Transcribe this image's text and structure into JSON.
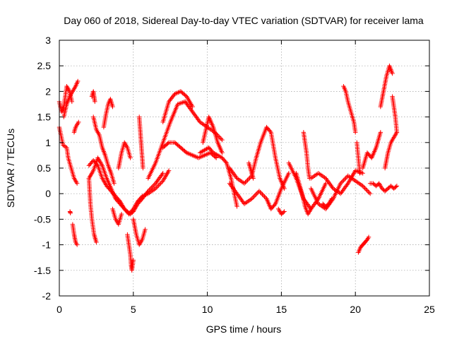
{
  "chart_data": {
    "type": "scatter",
    "title": "Day 060 of 2018, Sidereal Day-to-day VTEC variation (SDTVAR) for receiver lama",
    "xlabel": "GPS time / hours",
    "ylabel": "SDTVAR / TECUs",
    "xlim": [
      0,
      25
    ],
    "ylim": [
      -2,
      3
    ],
    "xticks": [
      0,
      5,
      10,
      15,
      20,
      25
    ],
    "yticks": [
      -2,
      -1.5,
      -1,
      -0.5,
      0,
      0.5,
      1,
      1.5,
      2,
      2.5,
      3
    ],
    "grid": true,
    "marker": "+",
    "color": "#ff0000",
    "series": [
      {
        "name": "s1",
        "x": [
          0.0,
          0.25,
          0.5,
          0.6,
          0.8,
          1.0,
          1.2
        ],
        "y": [
          1.3,
          0.95,
          0.9,
          0.7,
          0.5,
          0.3,
          0.2
        ]
      },
      {
        "name": "s2",
        "x": [
          0.0,
          0.15,
          0.3,
          0.5,
          0.7,
          0.85
        ],
        "y": [
          1.8,
          1.6,
          1.7,
          2.1,
          2.0,
          1.8
        ]
      },
      {
        "name": "s3",
        "x": [
          0.3,
          0.5,
          0.7,
          0.9,
          1.1,
          1.25
        ],
        "y": [
          1.5,
          1.75,
          1.9,
          2.0,
          2.1,
          2.2
        ]
      },
      {
        "name": "s4",
        "x": [
          0.9,
          1.0,
          1.1,
          1.2
        ],
        "y": [
          -0.6,
          -0.8,
          -0.95,
          -1.0
        ]
      },
      {
        "name": "s5",
        "x": [
          1.0,
          1.1,
          1.2,
          1.3
        ],
        "y": [
          1.2,
          1.3,
          1.35,
          1.4
        ]
      },
      {
        "name": "s6",
        "x": [
          0.72,
          0.75
        ],
        "y": [
          -0.35,
          -0.38
        ]
      },
      {
        "name": "s7",
        "x": [
          2.0,
          2.1,
          2.2,
          2.35,
          2.5
        ],
        "y": [
          0.3,
          -0.2,
          -0.5,
          -0.8,
          -0.95
        ]
      },
      {
        "name": "s8",
        "x": [
          2.0,
          2.3,
          2.6,
          2.9,
          3.2,
          3.5,
          3.8,
          4.1,
          4.4,
          4.6,
          4.8,
          5.0,
          5.3,
          5.6,
          6.0,
          6.5,
          7.0
        ],
        "y": [
          0.55,
          0.65,
          0.55,
          0.3,
          0.15,
          0.05,
          -0.05,
          -0.15,
          -0.3,
          -0.35,
          -0.4,
          -0.35,
          -0.2,
          -0.1,
          0.05,
          0.2,
          0.4
        ]
      },
      {
        "name": "s9",
        "x": [
          2.0,
          2.3,
          2.6,
          2.9,
          3.2,
          3.5,
          3.8,
          4.1,
          4.4,
          4.7,
          5.0,
          5.3,
          5.6,
          6.0,
          6.5,
          7.0,
          7.4
        ],
        "y": [
          0.3,
          0.45,
          0.7,
          0.55,
          0.3,
          0.1,
          -0.1,
          -0.2,
          -0.3,
          -0.4,
          -0.3,
          -0.15,
          -0.05,
          0.0,
          0.1,
          0.25,
          0.45
        ]
      },
      {
        "name": "s10",
        "x": [
          2.2,
          2.25,
          2.3,
          2.35,
          2.4
        ],
        "y": [
          1.9,
          1.95,
          2.0,
          1.9,
          1.8
        ]
      },
      {
        "name": "s11",
        "x": [
          2.3,
          2.5,
          2.7,
          2.9,
          3.1,
          3.3,
          3.5,
          3.7
        ],
        "y": [
          1.5,
          1.25,
          1.15,
          0.9,
          0.75,
          0.55,
          0.4,
          0.2
        ]
      },
      {
        "name": "s12",
        "x": [
          3.0,
          3.15,
          3.3,
          3.45,
          3.6
        ],
        "y": [
          1.3,
          1.55,
          1.75,
          1.85,
          1.7
        ]
      },
      {
        "name": "s13",
        "x": [
          3.6,
          3.8,
          4.0,
          4.2
        ],
        "y": [
          -0.3,
          -0.5,
          -0.6,
          -0.4
        ]
      },
      {
        "name": "s14",
        "x": [
          4.0,
          4.2,
          4.4,
          4.6,
          4.8
        ],
        "y": [
          0.5,
          0.8,
          1.0,
          0.9,
          0.7
        ]
      },
      {
        "name": "s15",
        "x": [
          4.6,
          4.7,
          4.8,
          4.85,
          4.9,
          5.0
        ],
        "y": [
          -0.8,
          -1.0,
          -1.2,
          -1.4,
          -1.5,
          -1.3
        ]
      },
      {
        "name": "s16",
        "x": [
          5.0,
          5.2,
          5.4,
          5.6,
          5.8
        ],
        "y": [
          -0.5,
          -0.8,
          -1.0,
          -0.9,
          -0.7
        ]
      },
      {
        "name": "s17",
        "x": [
          5.4,
          5.45,
          5.5,
          5.55,
          5.6,
          5.65
        ],
        "y": [
          1.5,
          1.3,
          1.1,
          0.9,
          0.7,
          0.5
        ]
      },
      {
        "name": "s18",
        "x": [
          6.0,
          6.5,
          7.0,
          7.5,
          8.0,
          8.5,
          9.0,
          9.5,
          10.0,
          10.5,
          11.0
        ],
        "y": [
          0.3,
          0.6,
          1.0,
          1.4,
          1.75,
          1.8,
          1.6,
          1.4,
          1.3,
          1.2,
          1.05
        ]
      },
      {
        "name": "s19",
        "x": [
          7.0,
          7.4,
          7.8,
          8.2,
          8.6,
          9.0
        ],
        "y": [
          1.4,
          1.8,
          1.95,
          2.0,
          1.9,
          1.7
        ]
      },
      {
        "name": "s20",
        "x": [
          7.0,
          7.4,
          7.8,
          8.2,
          8.6,
          9.0,
          9.4,
          9.8,
          10.2,
          10.6
        ],
        "y": [
          0.9,
          1.0,
          1.0,
          0.9,
          0.8,
          0.75,
          0.7,
          0.75,
          0.8,
          0.7
        ]
      },
      {
        "name": "s21",
        "x": [
          9.5,
          9.8,
          10.1,
          10.4,
          10.7,
          11.0,
          11.3,
          11.6,
          12.0
        ],
        "y": [
          0.8,
          0.85,
          0.9,
          0.8,
          0.75,
          0.7,
          0.6,
          0.3,
          -0.25
        ]
      },
      {
        "name": "s22",
        "x": [
          9.7,
          9.9,
          10.1,
          10.4,
          10.7,
          11.0
        ],
        "y": [
          1.0,
          1.25,
          1.5,
          1.3,
          1.0,
          0.8
        ]
      },
      {
        "name": "s23",
        "x": [
          11.5,
          12.0,
          12.5,
          13.0,
          13.3,
          13.6,
          14.0,
          14.3,
          14.6,
          14.9,
          15.2
        ],
        "y": [
          0.5,
          0.3,
          0.2,
          0.35,
          0.7,
          1.0,
          1.3,
          1.2,
          0.7,
          0.3,
          0.1
        ]
      },
      {
        "name": "s24",
        "x": [
          11.5,
          12.0,
          12.5,
          13.0,
          13.5,
          14.0,
          14.3,
          14.6,
          15.0,
          15.5
        ],
        "y": [
          0.2,
          0.0,
          -0.2,
          -0.1,
          0.05,
          -0.1,
          -0.3,
          -0.2,
          0.1,
          0.4
        ]
      },
      {
        "name": "s25",
        "x": [
          15.5,
          16.0,
          16.5,
          17.0,
          17.5,
          18.0
        ],
        "y": [
          0.6,
          0.3,
          -0.1,
          -0.3,
          -0.1,
          0.2
        ]
      },
      {
        "name": "s26",
        "x": [
          16.0,
          16.2,
          16.4,
          16.6,
          16.8,
          17.0
        ],
        "y": [
          0.4,
          0.2,
          0.0,
          -0.25,
          -0.4,
          -0.3
        ]
      },
      {
        "name": "s27",
        "x": [
          16.5,
          16.6,
          16.7,
          16.8,
          16.9
        ],
        "y": [
          1.2,
          1.0,
          0.8,
          0.5,
          0.3
        ]
      },
      {
        "name": "s28",
        "x": [
          17.0,
          17.5,
          18.0,
          18.5,
          19.0,
          19.5,
          20.0,
          20.5,
          21.0
        ],
        "y": [
          0.1,
          -0.2,
          -0.3,
          -0.1,
          0.2,
          0.35,
          0.25,
          0.15,
          0.0
        ]
      },
      {
        "name": "s29",
        "x": [
          17.0,
          17.5,
          18.0,
          18.5,
          19.0,
          19.5,
          20.0,
          20.5
        ],
        "y": [
          0.3,
          0.4,
          0.3,
          0.1,
          0.0,
          0.2,
          0.45,
          0.4
        ]
      },
      {
        "name": "s30",
        "x": [
          19.2,
          19.35,
          19.5,
          19.7,
          19.9,
          20.0
        ],
        "y": [
          2.1,
          2.0,
          1.8,
          1.6,
          1.4,
          1.2
        ]
      },
      {
        "name": "s31",
        "x": [
          20.1,
          20.2,
          20.3
        ],
        "y": [
          1.0,
          0.7,
          0.4
        ]
      },
      {
        "name": "s32",
        "x": [
          20.2,
          20.35,
          20.5,
          20.65,
          20.8,
          20.9
        ],
        "y": [
          -1.15,
          -1.05,
          -1.0,
          -0.95,
          -0.9,
          -0.85
        ]
      },
      {
        "name": "s33",
        "x": [
          20.5,
          20.8,
          21.1,
          21.4,
          21.7
        ],
        "y": [
          0.5,
          0.8,
          0.7,
          0.9,
          1.2
        ]
      },
      {
        "name": "s34",
        "x": [
          21.0,
          21.2,
          21.4,
          21.6,
          21.8,
          22.0,
          22.2,
          22.4,
          22.6,
          22.8
        ],
        "y": [
          0.2,
          0.2,
          0.15,
          0.2,
          0.1,
          0.05,
          0.1,
          0.15,
          0.1,
          0.15
        ]
      },
      {
        "name": "s35",
        "x": [
          21.7,
          21.9,
          22.1,
          22.3,
          22.5
        ],
        "y": [
          1.7,
          2.0,
          2.3,
          2.5,
          2.35
        ]
      },
      {
        "name": "s36",
        "x": [
          22.5,
          22.6,
          22.7,
          22.8
        ],
        "y": [
          1.9,
          1.7,
          1.5,
          1.2
        ]
      },
      {
        "name": "s37",
        "x": [
          22.0,
          22.2,
          22.4,
          22.6,
          22.8
        ],
        "y": [
          0.5,
          0.8,
          1.0,
          1.1,
          1.2
        ]
      },
      {
        "name": "s38",
        "x": [
          12.8,
          12.9,
          13.0,
          13.1
        ],
        "y": [
          0.6,
          0.5,
          0.4,
          0.3
        ]
      },
      {
        "name": "s39",
        "x": [
          14.8,
          15.0,
          15.2
        ],
        "y": [
          -0.3,
          -0.4,
          -0.35
        ]
      },
      {
        "name": "s40",
        "x": [
          17.8,
          18.0,
          18.2,
          18.4
        ],
        "y": [
          -0.2,
          -0.25,
          -0.2,
          -0.1
        ]
      }
    ]
  }
}
